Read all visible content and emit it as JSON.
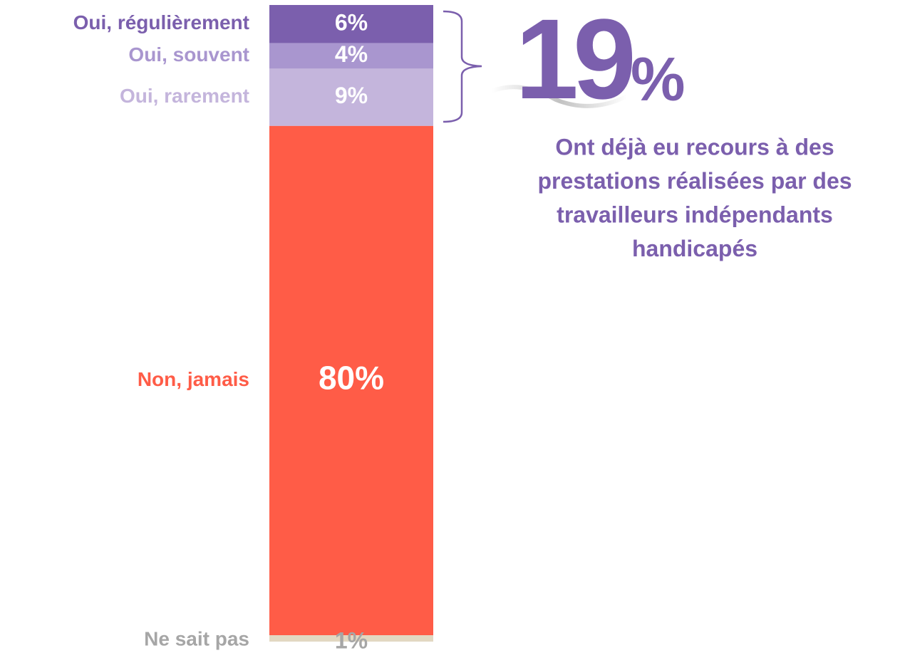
{
  "chart_data": {
    "type": "stacked-bar",
    "series": [
      {
        "name": "Oui, régulièrement",
        "values": [
          6
        ],
        "value_labels": [
          "6%"
        ],
        "color": "#7b5fad",
        "name_color": "#7b5fad",
        "label_color": "#ffffff"
      },
      {
        "name": "Oui, souvent",
        "values": [
          4
        ],
        "value_labels": [
          "4%"
        ],
        "color": "#a996cf",
        "name_color": "#a996cf",
        "label_color": "#ffffff"
      },
      {
        "name": "Oui, rarement",
        "values": [
          9
        ],
        "value_labels": [
          "9%"
        ],
        "color": "#c4b5dc",
        "name_color": "#c4b5dc",
        "label_color": "#ffffff"
      },
      {
        "name": "Non, jamais",
        "values": [
          80
        ],
        "value_labels": [
          "80%"
        ],
        "color": "#ff5c47",
        "name_color": "#ff5c47",
        "label_color": "#ffffff"
      },
      {
        "name": "Ne sait pas",
        "values": [
          1
        ],
        "value_labels": [
          "1%"
        ],
        "color": "#e2d8c2",
        "name_color": "#a6a6a6",
        "label_color": "#a6a6a6"
      }
    ],
    "callout": {
      "value": 19,
      "unit": "%",
      "color": "#7b5fad",
      "text_lines": [
        "Ont déjà eu recours à des",
        "prestations réalisées par des",
        "travailleurs indépendants",
        "handicapés"
      ]
    }
  }
}
